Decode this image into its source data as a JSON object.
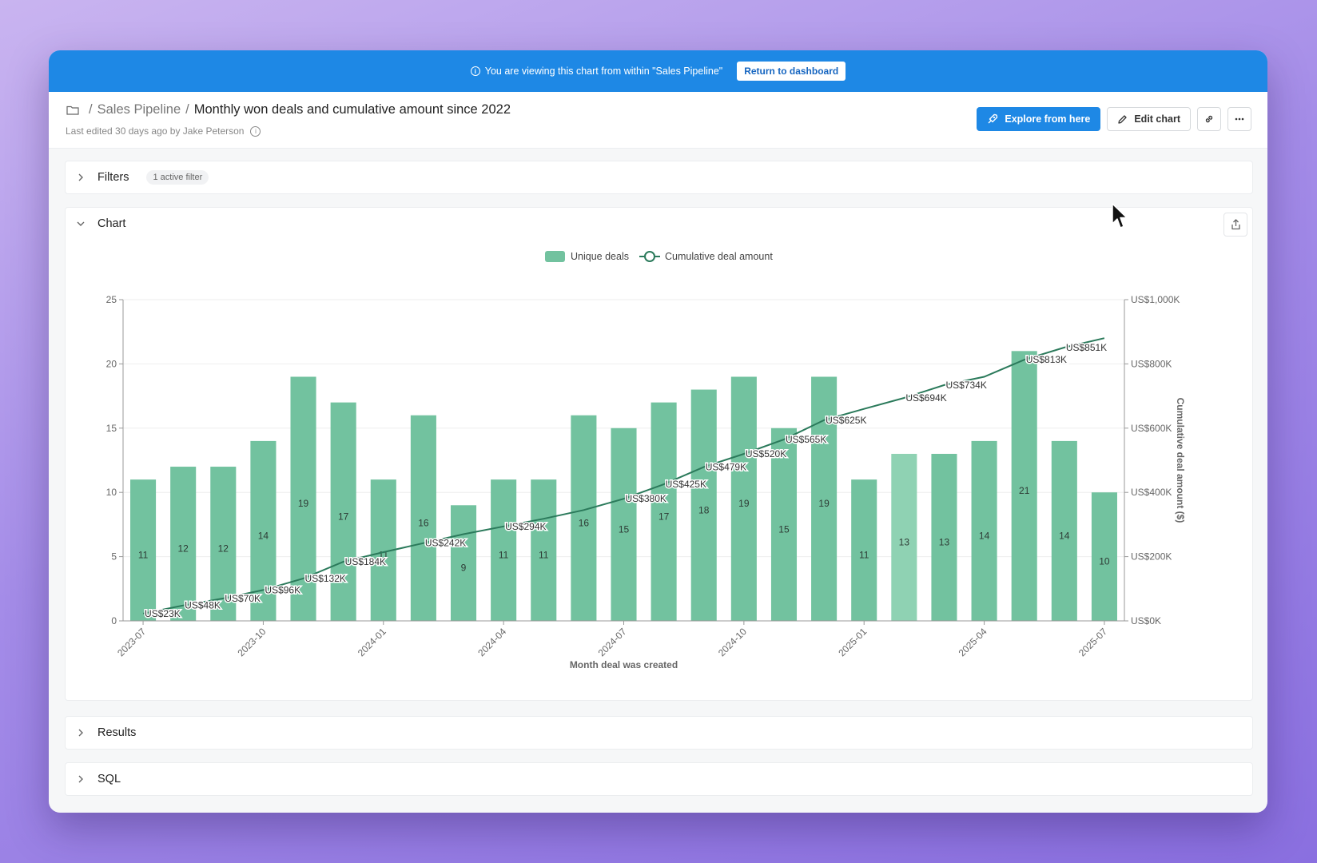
{
  "banner": {
    "message": "You are viewing this chart from within \"Sales Pipeline\"",
    "button_label": "Return to dashboard"
  },
  "header": {
    "breadcrumb_sep1": "/",
    "breadcrumb_parent": "Sales Pipeline",
    "breadcrumb_sep2": "/",
    "title": "Monthly won deals and cumulative amount since 2022",
    "last_edited": "Last edited 30 days ago by Jake Peterson"
  },
  "actions": {
    "explore_label": "Explore from here",
    "edit_label": "Edit chart"
  },
  "filters": {
    "label": "Filters",
    "badge": "1 active filter"
  },
  "chart_panel": {
    "label": "Chart"
  },
  "results": {
    "label": "Results"
  },
  "sql": {
    "label": "SQL"
  },
  "colors": {
    "accent": "#1e88e5",
    "bar": "#72c29f",
    "bar_highlight": "#8fd2b3",
    "line": "#2b7a5b"
  },
  "chart_data": {
    "type": "bar",
    "title": "",
    "xlabel": "Month deal was created",
    "ylabel_left": "",
    "ylabel_right": "Cumulative deal amount ($)",
    "legend": [
      "Unique deals",
      "Cumulative deal amount"
    ],
    "legend_position": "top-center",
    "grid": true,
    "ylim_left": [
      0,
      25
    ],
    "ylim_right": [
      0,
      1000
    ],
    "left_ticks": [
      "0",
      "5",
      "10",
      "15",
      "20",
      "25"
    ],
    "right_ticks": [
      "US$0K",
      "US$200K",
      "US$400K",
      "US$600K",
      "US$800K",
      "US$1,000K"
    ],
    "x_tick_labels": [
      "2023-07",
      "2023-10",
      "2024-01",
      "2024-04",
      "2024-07",
      "2024-10",
      "2025-01",
      "2025-04",
      "2025-07"
    ],
    "categories": [
      "2023-07",
      "2023-08",
      "2023-09",
      "2023-10",
      "2023-11",
      "2023-12",
      "2024-01",
      "2024-02",
      "2024-03",
      "2024-04",
      "2024-05",
      "2024-06",
      "2024-07",
      "2024-08",
      "2024-09",
      "2024-10",
      "2024-11",
      "2024-12",
      "2025-01",
      "2025-02",
      "2025-03",
      "2025-04",
      "2025-05",
      "2025-06",
      "2025-07"
    ],
    "series": [
      {
        "name": "Unique deals",
        "type": "bar",
        "values": [
          11,
          12,
          12,
          14,
          19,
          17,
          11,
          16,
          9,
          11,
          11,
          16,
          15,
          17,
          18,
          19,
          15,
          19,
          11,
          13,
          13,
          14,
          21,
          14,
          10
        ]
      },
      {
        "name": "Cumulative deal amount",
        "type": "line",
        "values": [
          23,
          48,
          70,
          96,
          132,
          184,
          214,
          242,
          270,
          294,
          318,
          345,
          380,
          425,
          479,
          520,
          565,
          625,
          660,
          694,
          734,
          760,
          813,
          851,
          880
        ]
      }
    ],
    "line_labels": [
      "US$23K",
      "US$48K",
      "US$70K",
      "US$96K",
      "US$132K",
      "US$184K",
      "",
      "US$242K",
      "",
      "US$294K",
      "",
      "",
      "US$380K",
      "US$425K",
      "US$479K",
      "US$520K",
      "US$565K",
      "US$625K",
      "",
      "US$694K",
      "US$734K",
      "",
      "US$813K",
      "US$851K",
      ""
    ]
  }
}
